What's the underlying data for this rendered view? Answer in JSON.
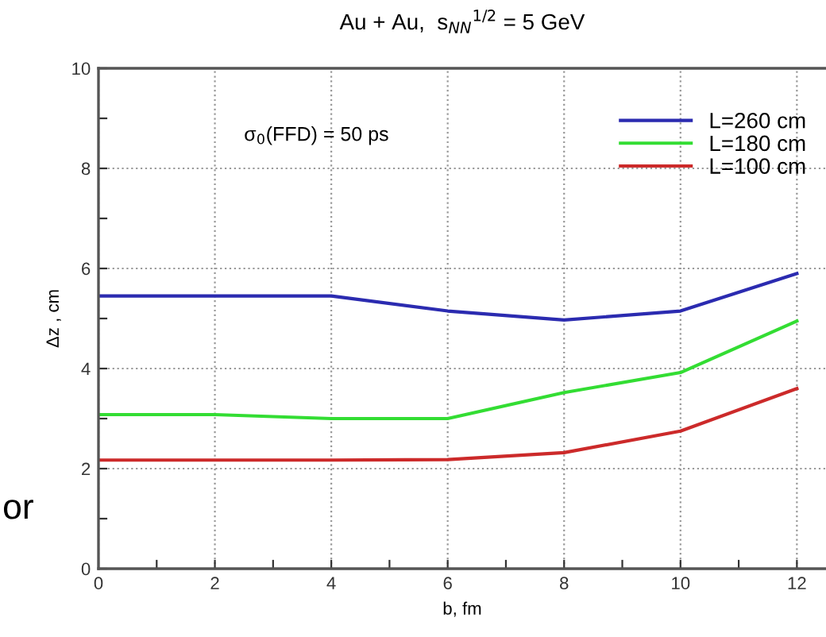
{
  "chart_data": {
    "type": "line",
    "title": "Au + Au,  s$_{NN}$$^{1/2}$ = 5 GeV",
    "xlabel": "b, fm",
    "ylabel": "Δz , cm",
    "annotations": [
      "σ$_{0}$(FFD) = 50 ps",
      "or"
    ],
    "x": [
      0,
      2,
      4,
      6,
      8,
      10,
      12
    ],
    "series": [
      {
        "name": "L=260 cm",
        "color": "#2b2bb0",
        "values": [
          5.45,
          5.45,
          5.45,
          5.15,
          4.97,
          5.15,
          5.9
        ]
      },
      {
        "name": "L=180 cm",
        "color": "#33dd33",
        "values": [
          3.08,
          3.08,
          3.0,
          3.0,
          3.52,
          3.92,
          4.95
        ]
      },
      {
        "name": "L=100 cm",
        "color": "#cc2a2a",
        "values": [
          2.17,
          2.17,
          2.17,
          2.18,
          2.32,
          2.75,
          3.6
        ]
      }
    ],
    "xlim": [
      0,
      12.5
    ],
    "ylim": [
      0,
      10
    ],
    "xticks": [
      0,
      {
        "value": 1,
        "label": null
      },
      2,
      {
        "value": 3,
        "label": null
      },
      4,
      {
        "value": 5,
        "label": null
      },
      6,
      {
        "value": 7,
        "label": null
      },
      8,
      {
        "value": 9,
        "label": null
      },
      10,
      {
        "value": 11,
        "label": null
      },
      12
    ],
    "yticks": [
      0,
      {
        "value": 1,
        "label": null
      },
      2,
      {
        "value": 3,
        "label": null
      },
      4,
      {
        "value": 5,
        "label": null
      },
      6,
      {
        "value": 7,
        "label": null
      },
      8,
      {
        "value": 9,
        "label": null
      },
      10
    ],
    "grid": true,
    "legend": "top right",
    "marker": "none",
    "line_style": "solid"
  }
}
